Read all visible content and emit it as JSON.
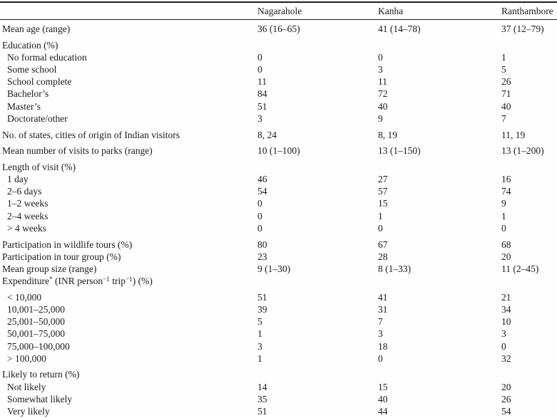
{
  "table": {
    "columns": [
      "",
      "Nagarahole",
      "Kanha",
      "Ranthambore"
    ],
    "rows": [
      {
        "label": "Mean age (range)",
        "values": [
          "36 (16–65)",
          "41 (14–78)",
          "37 (12–79)"
        ]
      },
      {
        "label": "Education (%)",
        "values": [
          "",
          "",
          ""
        ],
        "gap": true
      },
      {
        "label": "No formal education",
        "indent": true,
        "values": [
          "0",
          "0",
          "1"
        ]
      },
      {
        "label": "Some school",
        "indent": true,
        "values": [
          "0",
          "3",
          "5"
        ]
      },
      {
        "label": "School complete",
        "indent": true,
        "values": [
          "11",
          "11",
          "26"
        ]
      },
      {
        "label": "Bachelor’s",
        "indent": true,
        "values": [
          "84",
          "72",
          "71"
        ]
      },
      {
        "label": "Master’s",
        "indent": true,
        "values": [
          "51",
          "40",
          "40"
        ]
      },
      {
        "label": "Doctorate/other",
        "indent": true,
        "values": [
          "3",
          "9",
          "7"
        ]
      },
      {
        "label": "No. of states, cities of origin of Indian visitors",
        "gap": true,
        "values": [
          "8, 24",
          "8, 19",
          "11, 19"
        ]
      },
      {
        "label": "Mean number of visits to parks (range)",
        "gap": true,
        "values": [
          "10 (1–100)",
          "13 (1–150)",
          "13 (1–200)"
        ]
      },
      {
        "label": "Length of visit (%)",
        "gap": true,
        "values": [
          "",
          "",
          ""
        ]
      },
      {
        "label": "1 day",
        "indent": true,
        "values": [
          "46",
          "27",
          "16"
        ]
      },
      {
        "label": "2–6 days",
        "indent": true,
        "values": [
          "54",
          "57",
          "74"
        ]
      },
      {
        "label": "1–2 weeks",
        "indent": true,
        "values": [
          "0",
          "15",
          "9"
        ]
      },
      {
        "label": "2–4 weeks",
        "indent": true,
        "values": [
          "0",
          "1",
          "1"
        ]
      },
      {
        "label": "> 4 weeks",
        "indent": true,
        "values": [
          "0",
          "0",
          "0"
        ]
      },
      {
        "label": "Participation in wildlife tours (%)",
        "gap": true,
        "values": [
          "80",
          "67",
          "68"
        ]
      },
      {
        "label": "Participation in tour group (%)",
        "values": [
          "23",
          "28",
          "20"
        ]
      },
      {
        "label": "Mean group size (range)",
        "values": [
          "9 (1–30)",
          "8 (1–33)",
          "11 (2–45)"
        ]
      },
      {
        "label": "Expenditure^{*} (INR person^{−1} trip^{−1}) (%)",
        "values": [
          "",
          "",
          ""
        ]
      },
      {
        "label": "< 10,000",
        "indent": true,
        "gap": true,
        "values": [
          "51",
          "41",
          "21"
        ]
      },
      {
        "label": "10,001–25,000",
        "indent": true,
        "values": [
          "39",
          "31",
          "34"
        ]
      },
      {
        "label": "25,001–50,000",
        "indent": true,
        "values": [
          "5",
          "7",
          "10"
        ]
      },
      {
        "label": "50,001–75,000",
        "indent": true,
        "values": [
          "1",
          "3",
          "3"
        ]
      },
      {
        "label": "75,000–100,000",
        "indent": true,
        "values": [
          "3",
          "18",
          "0"
        ]
      },
      {
        "label": "> 100,000",
        "indent": true,
        "values": [
          "1",
          "0",
          "32"
        ]
      },
      {
        "label": "Likely to return (%)",
        "gap": true,
        "values": [
          "",
          "",
          ""
        ]
      },
      {
        "label": "Not likely",
        "indent": true,
        "values": [
          "14",
          "15",
          "20"
        ]
      },
      {
        "label": "Somewhat likely",
        "indent": true,
        "values": [
          "35",
          "40",
          "26"
        ]
      },
      {
        "label": "Very likely",
        "indent": true,
        "values": [
          "51",
          "44",
          "54"
        ]
      }
    ]
  }
}
